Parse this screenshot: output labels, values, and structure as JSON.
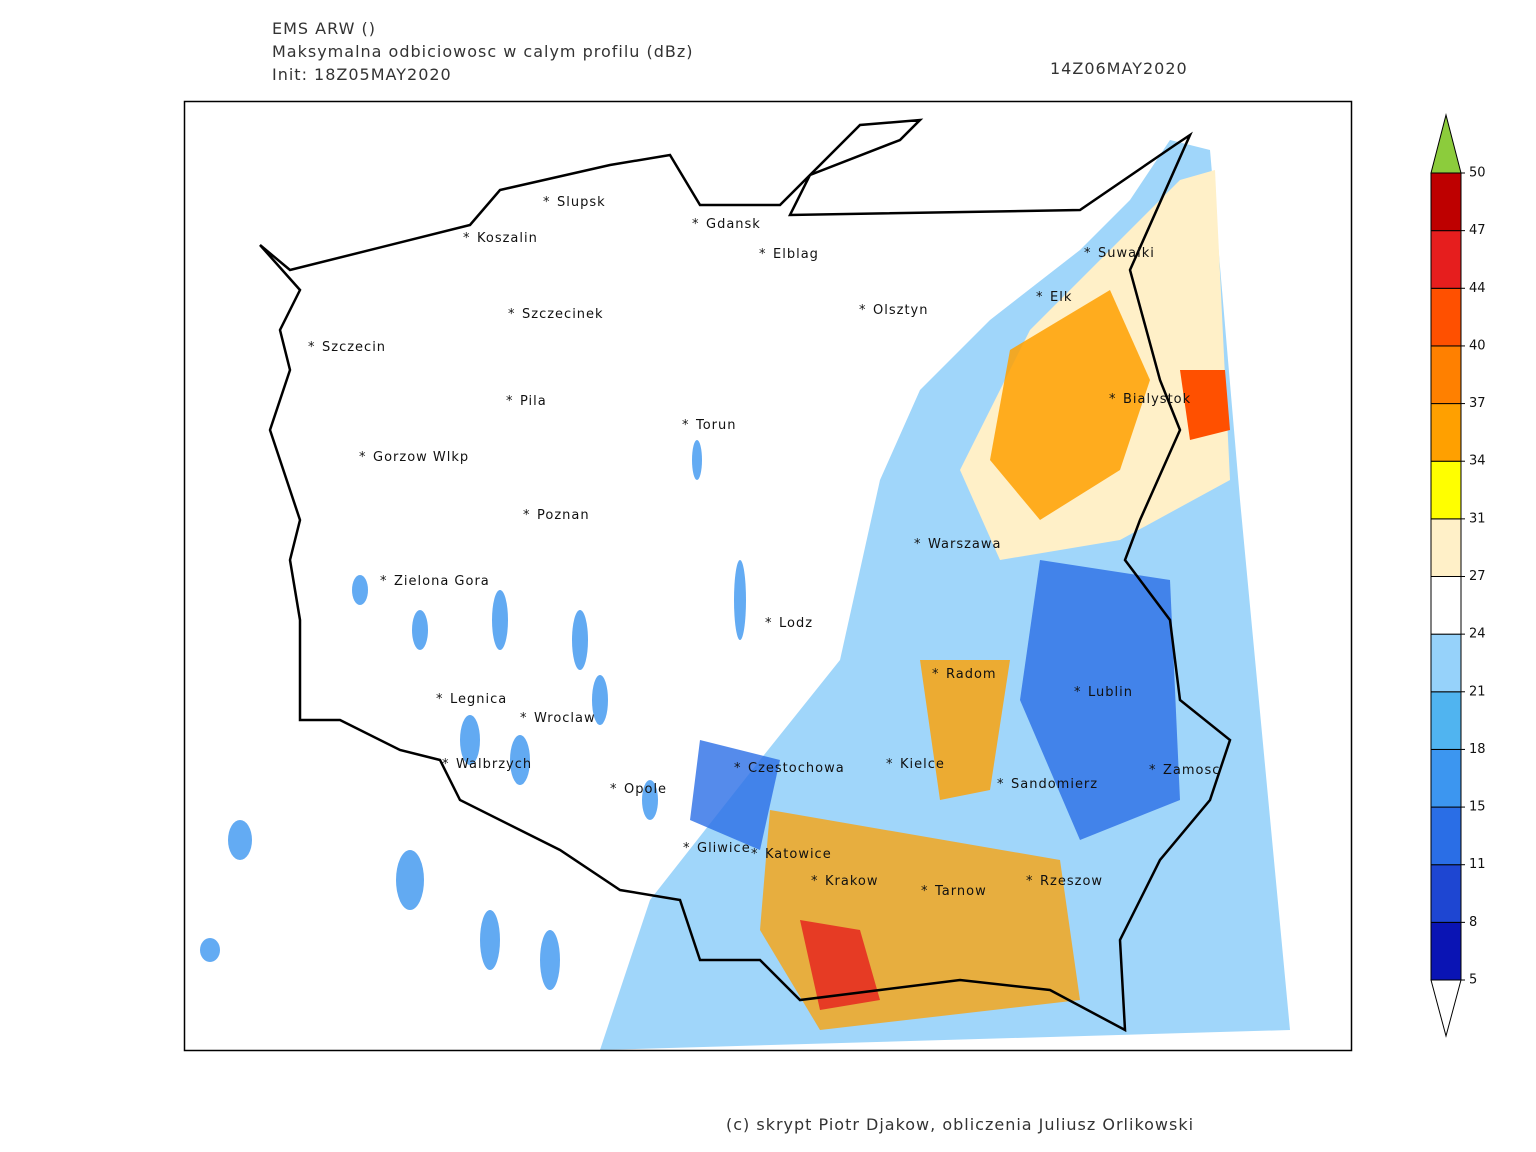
{
  "header": {
    "model": "EMS ARW ()",
    "field": "Maksymalna odbiciowosc w calym profilu (dBz)",
    "init": "Init: 18Z05MAY2020",
    "valid": "14Z06MAY2020"
  },
  "cities": [
    "Slupsk",
    "Koszalin",
    "Gdansk",
    "Elblag",
    "Suwalki",
    "Elk",
    "Szczecinek",
    "Olsztyn",
    "Szczecin",
    "Bialystok",
    "Pila",
    "Torun",
    "Gorzow Wlkp",
    "Poznan",
    "Warszawa",
    "Zielona Gora",
    "Lodz",
    "Radom",
    "Lublin",
    "Legnica",
    "Wroclaw",
    "Walbrzych",
    "Czestochowa",
    "Kielce",
    "Zamosc",
    "Sandomierz",
    "Opole",
    "Gliwice",
    "Katowice",
    "Krakow",
    "Tarnow",
    "Rzeszow"
  ],
  "colorbar": {
    "ticks": [
      5,
      8,
      11,
      15,
      18,
      21,
      24,
      27,
      31,
      34,
      37,
      40,
      44,
      47,
      50
    ],
    "colors": [
      "#0a14b4",
      "#1e46d2",
      "#2a6ee6",
      "#3c96f0",
      "#50b4f0",
      "#96d2fa",
      "#ffffff",
      "#fff0c8",
      "#ffff00",
      "#ffa000",
      "#ff8000",
      "#ff5000",
      "#e61e1e",
      "#be0000"
    ],
    "over_color": "#8ccc3c",
    "under_color": "#ffffff"
  },
  "credit": "(c) skrypt Piotr Djakow, obliczenia Juliusz Orlikowski"
}
